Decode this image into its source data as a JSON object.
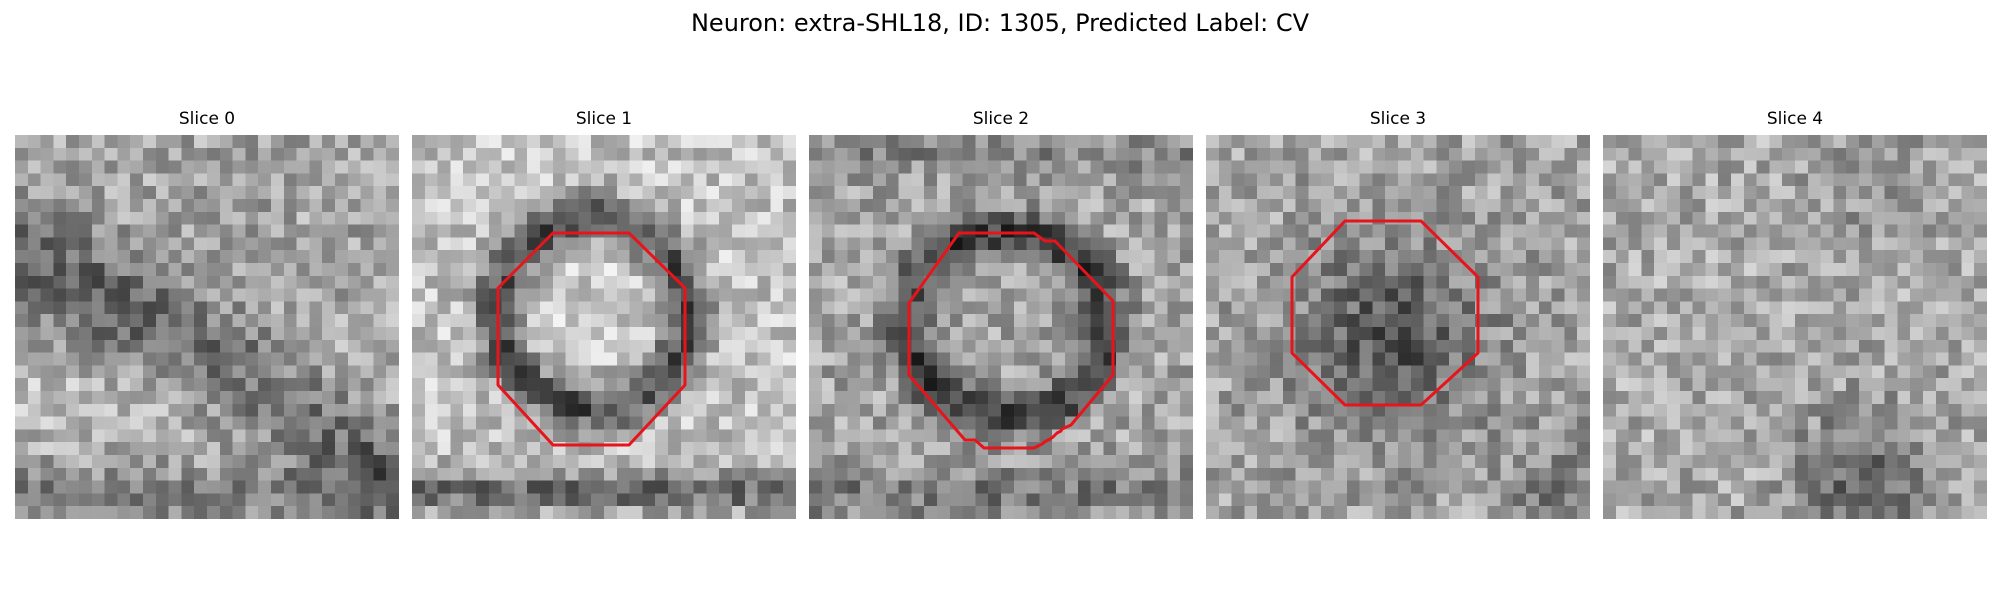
{
  "figure": {
    "title": "Neuron: extra-SHL18, ID: 1305, Predicted Label: CV"
  },
  "panels": [
    {
      "title": "Slice 0",
      "has_contour": false
    },
    {
      "title": "Slice 1",
      "has_contour": true,
      "contour_shape": "octagon"
    },
    {
      "title": "Slice 2",
      "has_contour": true,
      "contour_shape": "octagon"
    },
    {
      "title": "Slice 3",
      "has_contour": true,
      "contour_shape": "octagon"
    },
    {
      "title": "Slice 4",
      "has_contour": false
    }
  ],
  "style": {
    "contour_color": "#e8141b",
    "colormap": "grayscale"
  }
}
